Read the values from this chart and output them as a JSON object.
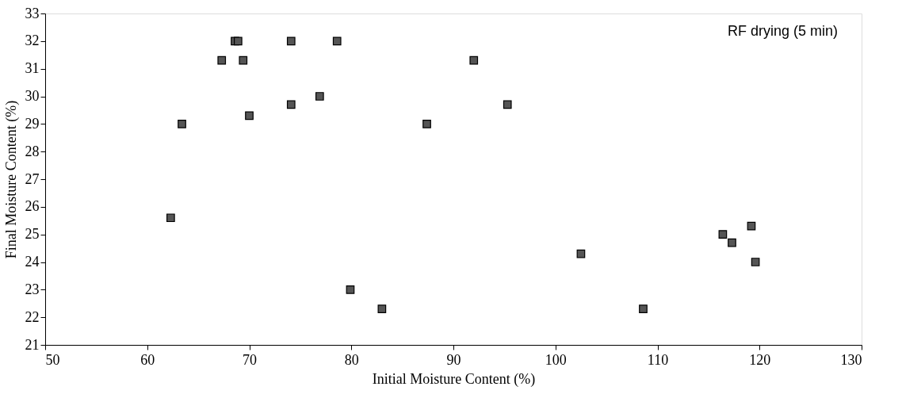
{
  "chart_data": {
    "type": "scatter",
    "xlabel": "Initial Moisture Content (%)",
    "ylabel": "Final Moisture Content (%)",
    "annotations": [
      "RF drying (5 min)"
    ],
    "x": [
      62.3,
      63.4,
      67.3,
      68.6,
      68.9,
      69.4,
      70.0,
      74.1,
      74.1,
      76.9,
      78.6,
      79.9,
      83.0,
      87.4,
      92.0,
      95.3,
      102.5,
      108.6,
      116.4,
      117.3,
      119.2,
      119.6
    ],
    "series": [
      {
        "color": "#555555",
        "values": [
          25.6,
          29.0,
          31.3,
          32.0,
          32.0,
          31.3,
          29.3,
          32.0,
          29.7,
          30.0,
          32.0,
          23.0,
          22.3,
          29.0,
          31.3,
          29.7,
          24.3,
          22.3,
          25.0,
          24.7,
          25.3,
          24.0
        ]
      }
    ],
    "xlim": [
      50,
      130
    ],
    "xticks": [
      50,
      60,
      70,
      80,
      90,
      100,
      110,
      120,
      130
    ],
    "ylim": [
      21,
      33
    ],
    "yticks": [
      21,
      22,
      23,
      24,
      25,
      26,
      27,
      28,
      29,
      30,
      31,
      32,
      33
    ],
    "grid": false,
    "legend": false,
    "marker": "square"
  }
}
